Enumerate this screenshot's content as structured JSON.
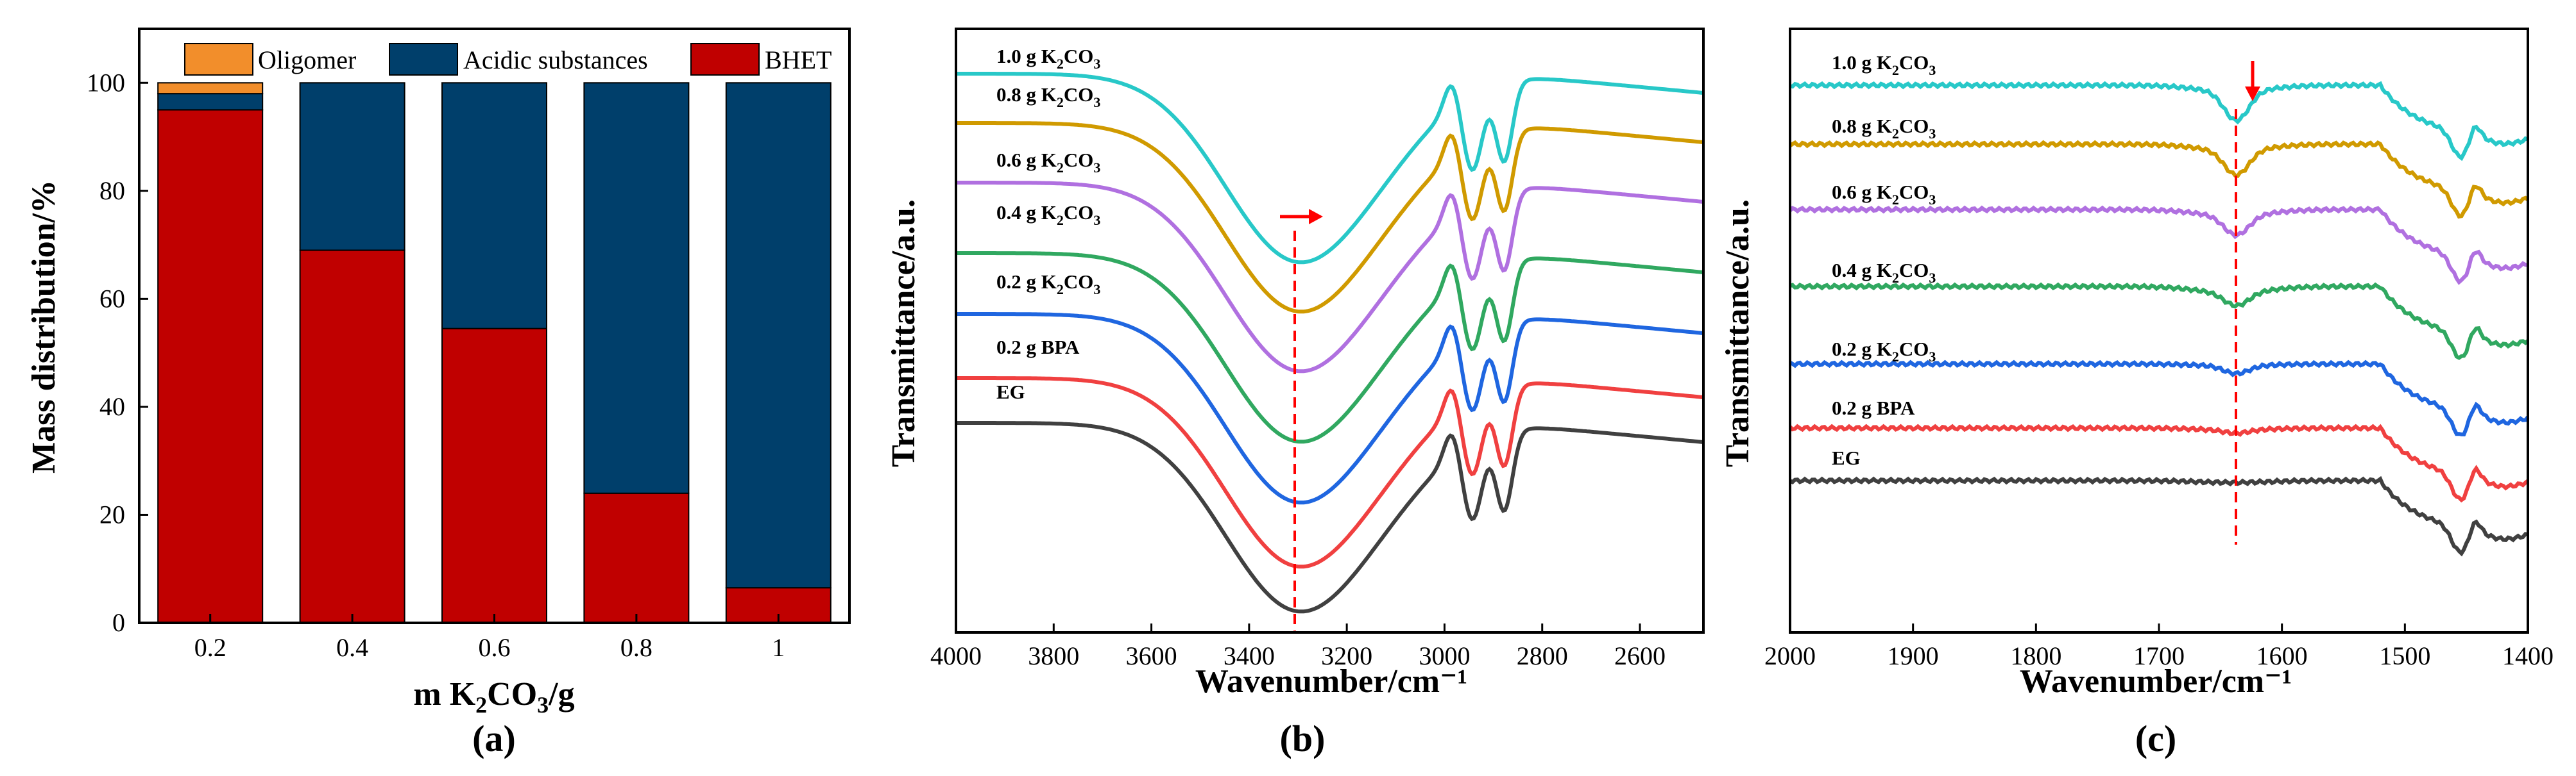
{
  "figure": {
    "panel_labels": [
      "(a)",
      "(b)",
      "(c)"
    ]
  },
  "chart_data": [
    {
      "panel": "(a)",
      "type": "bar",
      "stacked": true,
      "categories": [
        "0.2",
        "0.4",
        "0.6",
        "0.8",
        "1"
      ],
      "series": [
        {
          "name": "BHET",
          "color": "#c00000",
          "values": [
            95,
            69,
            54.5,
            24,
            6.5
          ]
        },
        {
          "name": "Acidic substances",
          "color": "#003f6b",
          "values": [
            3,
            31,
            45.5,
            76,
            93.5
          ]
        },
        {
          "name": "Oligomer",
          "color": "#f28e2b",
          "values": [
            2,
            0,
            0,
            0,
            0
          ]
        }
      ],
      "legend_order": [
        "Oligomer",
        "Acidic substances",
        "BHET"
      ],
      "legend_position": "top",
      "xlabel": {
        "pre": "m K",
        "sub": "2",
        "mid": "CO",
        "sub2": "3",
        "post": "/g"
      },
      "ylabel": "Mass distribution/%",
      "ylim": [
        0,
        110
      ],
      "yticks": [
        "0",
        "20",
        "40",
        "60",
        "80",
        "100"
      ],
      "grid": false
    },
    {
      "panel": "(b)",
      "type": "line",
      "xlabel": "Wavenumber/cm⁻¹",
      "ylabel": "Transmittance/a.u.",
      "xlim": [
        4000,
        2470
      ],
      "xticks": [
        "4000",
        "3800",
        "3600",
        "3400",
        "3200",
        "3000",
        "2800",
        "2600"
      ],
      "marker_wavenumber": 3300,
      "arrow_direction": "right",
      "arrow_color": "#ff0000",
      "series": [
        {
          "name": "EG",
          "color": "#404040",
          "offset": 0
        },
        {
          "name": "0.2 g BPA",
          "color": "#f04040",
          "offset": 1
        },
        {
          "name": "0.2 g K₂CO₃",
          "color": "#1f66e0",
          "offset": 2
        },
        {
          "name": "0.4 g K₂CO₃",
          "color": "#30a860",
          "offset": 3
        },
        {
          "name": "0.6 g K₂CO₃",
          "color": "#b070e0",
          "offset": 4
        },
        {
          "name": "0.8 g K₂CO₃",
          "color": "#d09a00",
          "offset": 5
        },
        {
          "name": "1.0 g K₂CO₃",
          "color": "#28c8c8",
          "offset": 6
        }
      ],
      "curve_labels": [
        {
          "base": "EG"
        },
        {
          "base": "0.2 g BPA"
        },
        {
          "pre": "0.2 g K",
          "sub": "2",
          "mid": "CO",
          "sub2": "3"
        },
        {
          "pre": "0.4 g K",
          "sub": "2",
          "mid": "CO",
          "sub2": "3"
        },
        {
          "pre": "0.6 g K",
          "sub": "2",
          "mid": "CO",
          "sub2": "3"
        },
        {
          "pre": "0.8 g K",
          "sub": "2",
          "mid": "CO",
          "sub2": "3"
        },
        {
          "pre": "1.0 g K",
          "sub": "2",
          "mid": "CO",
          "sub2": "3"
        }
      ]
    },
    {
      "panel": "(c)",
      "type": "line",
      "xlabel": "Wavenumber/cm⁻¹",
      "ylabel": "Transmittance/a.u.",
      "xlim": [
        2000,
        1400
      ],
      "xticks": [
        "2000",
        "1900",
        "1800",
        "1700",
        "1600",
        "1500",
        "1400"
      ],
      "marker_wavenumber": 1637,
      "arrow_direction": "down",
      "arrow_color": "#ff0000",
      "series": [
        {
          "name": "EG",
          "color": "#404040",
          "offset": 0
        },
        {
          "name": "0.2 g BPA",
          "color": "#f04040",
          "offset": 1
        },
        {
          "name": "0.2 g K₂CO₃",
          "color": "#1f66e0",
          "offset": 2
        },
        {
          "name": "0.4 g K₂CO₃",
          "color": "#30a860",
          "offset": 3
        },
        {
          "name": "0.6 g K₂CO₃",
          "color": "#b070e0",
          "offset": 4
        },
        {
          "name": "0.8 g K₂CO₃",
          "color": "#d09a00",
          "offset": 5
        },
        {
          "name": "1.0 g K₂CO₃",
          "color": "#28c8c8",
          "offset": 6
        }
      ],
      "curve_labels": [
        {
          "base": "EG"
        },
        {
          "base": "0.2 g BPA"
        },
        {
          "pre": "0.2 g K",
          "sub": "2",
          "mid": "CO",
          "sub2": "3"
        },
        {
          "pre": "0.4 g K",
          "sub": "2",
          "mid": "CO",
          "sub2": "3"
        },
        {
          "pre": "0.6 g K",
          "sub": "2",
          "mid": "CO",
          "sub2": "3"
        },
        {
          "pre": "0.8 g K",
          "sub": "2",
          "mid": "CO",
          "sub2": "3"
        },
        {
          "pre": "1.0 g K",
          "sub": "2",
          "mid": "CO",
          "sub2": "3"
        }
      ]
    }
  ]
}
